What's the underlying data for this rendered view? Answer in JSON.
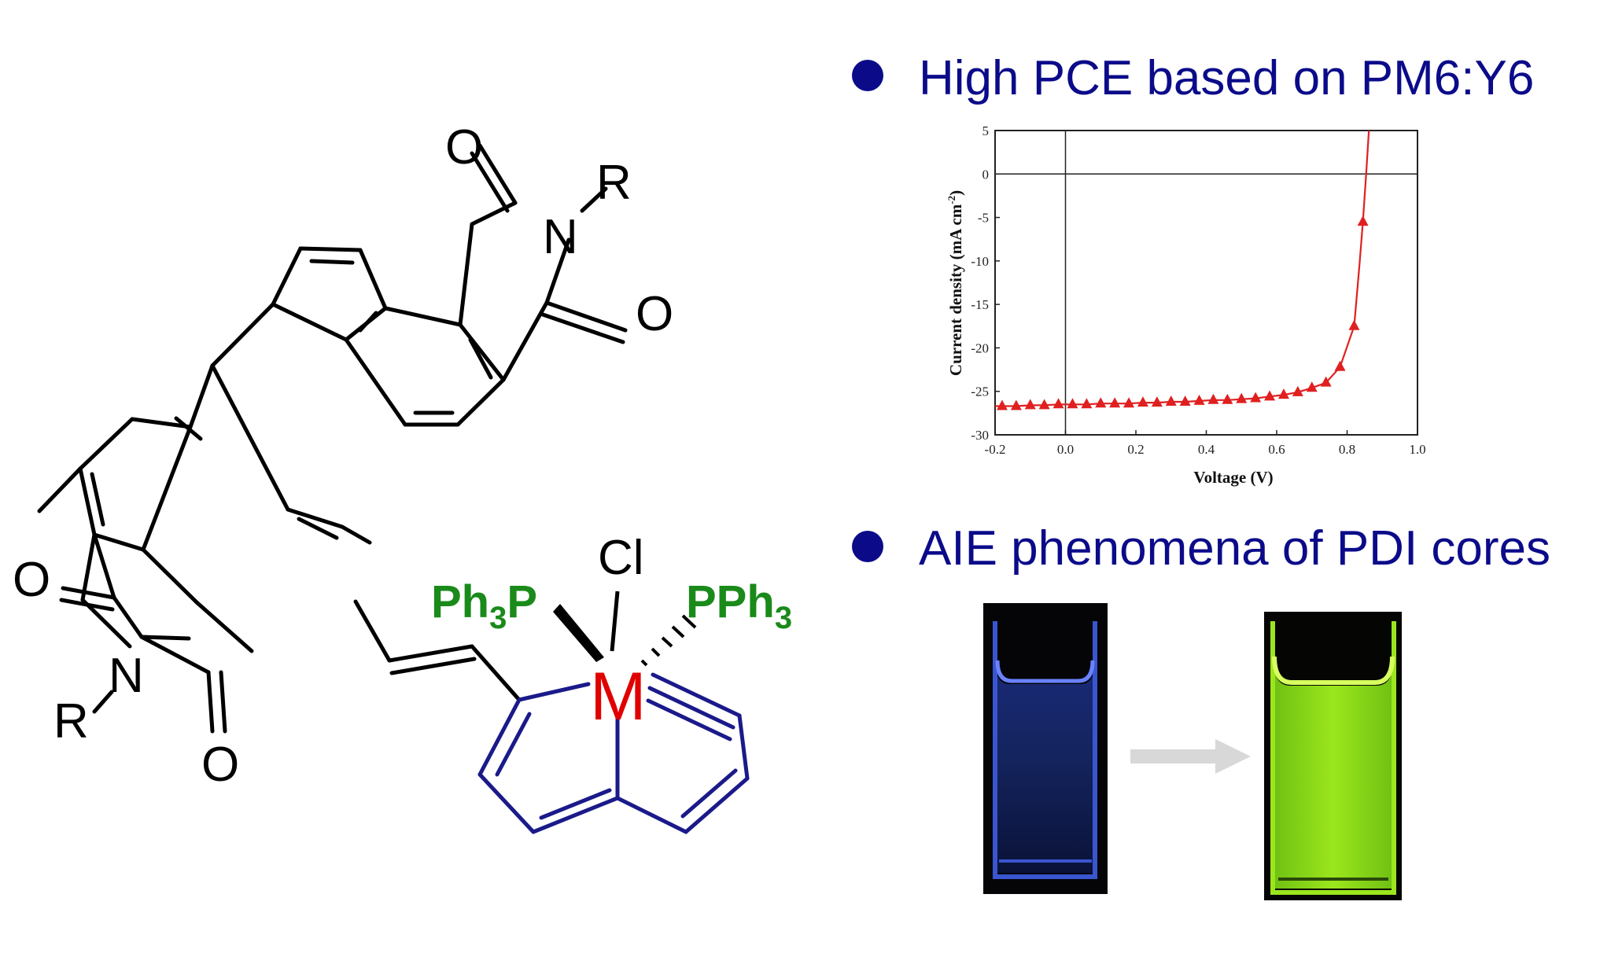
{
  "molecule": {
    "atoms": {
      "oxygen": "O",
      "nitrogen": "N",
      "r_group": "R",
      "chlorine": "Cl",
      "metal": "M",
      "phosphine_left_main": "Ph",
      "phosphine_left_sub": "3",
      "phosphine_left_tail": "P",
      "phosphine_right_main": "PPh",
      "phosphine_right_sub": "3"
    },
    "colors": {
      "skeleton": "#000000",
      "metallacycle": "#1a1a8a",
      "phosphine": "#1a8a1a",
      "metal": "#e00000"
    }
  },
  "bullets": [
    {
      "text": "High PCE based on PM6:Y6",
      "color": "#0b0b8a"
    },
    {
      "text": "AIE phenomena of PDI cores",
      "color": "#0b0b8a"
    }
  ],
  "chart_data": {
    "type": "line",
    "title": "",
    "xlabel": "Voltage (V)",
    "ylabel_main": "Current density (mA cm",
    "ylabel_sup": "-2",
    "ylabel_close": ")",
    "xlim": [
      -0.2,
      1.0
    ],
    "ylim": [
      -30,
      5
    ],
    "xticks": [
      "-0.2",
      "0.0",
      "0.2",
      "0.4",
      "0.6",
      "0.8",
      "1.0"
    ],
    "yticks": [
      "5",
      "0",
      "-5",
      "-10",
      "-15",
      "-20",
      "-25",
      "-30"
    ],
    "grid": false,
    "series": [
      {
        "color": "#e02020",
        "marker": "triangle",
        "x": [
          -0.18,
          -0.14,
          -0.1,
          -0.06,
          -0.02,
          0.02,
          0.06,
          0.1,
          0.14,
          0.18,
          0.22,
          0.26,
          0.3,
          0.34,
          0.38,
          0.42,
          0.46,
          0.5,
          0.54,
          0.58,
          0.62,
          0.66,
          0.7,
          0.74,
          0.78,
          0.82
        ],
        "y": [
          -26.7,
          -26.7,
          -26.6,
          -26.6,
          -26.5,
          -26.5,
          -26.5,
          -26.4,
          -26.4,
          -26.4,
          -26.3,
          -26.3,
          -26.2,
          -26.2,
          -26.1,
          -26.0,
          -26.0,
          -25.9,
          -25.8,
          -25.6,
          -25.4,
          -25.1,
          -24.6,
          -24.0,
          -22.2,
          -17.5
        ]
      }
    ],
    "extra_markers": [
      {
        "x": 0.845,
        "y": -5.5
      }
    ]
  },
  "vials": {
    "left_glow": "#3a55d0",
    "right_glow": "#8fd81a",
    "arrow_color": "#d8d8d8"
  }
}
